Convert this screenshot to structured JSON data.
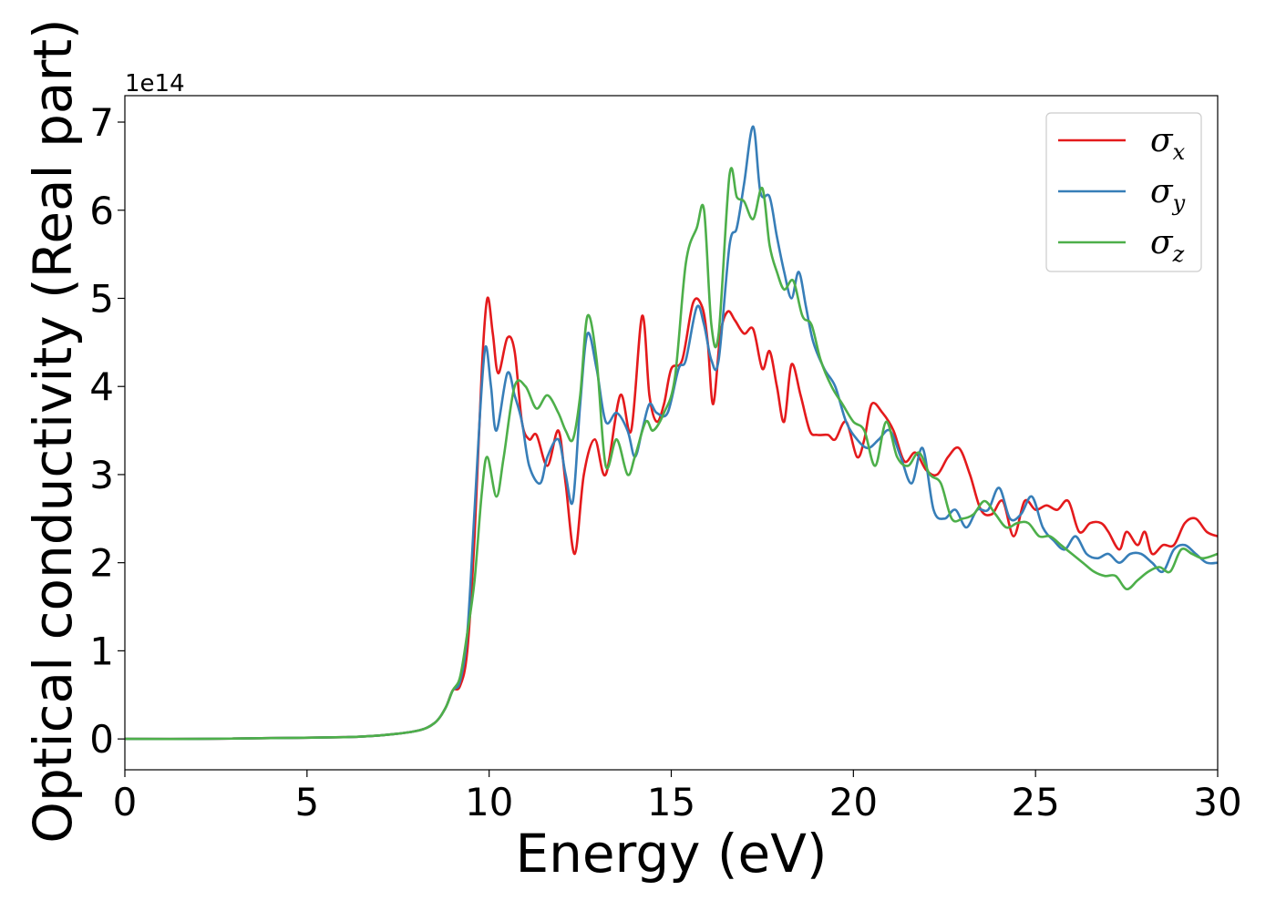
{
  "chart_data": {
    "type": "line",
    "xlabel": "Energy (eV)",
    "ylabel": "Optical conductivity (Real part)",
    "y_offset_label": "1e14",
    "xlim": [
      0,
      30
    ],
    "ylim": [
      -0.35,
      7.3
    ],
    "xticks": [
      0,
      5,
      10,
      15,
      20,
      25,
      30
    ],
    "xtick_labels": [
      "0",
      "5",
      "10",
      "15",
      "20",
      "25",
      "30"
    ],
    "yticks": [
      0,
      1,
      2,
      3,
      4,
      5,
      6,
      7
    ],
    "ytick_labels": [
      "0",
      "1",
      "2",
      "3",
      "4",
      "5",
      "6",
      "7"
    ],
    "grid": false,
    "legend_position": "top-right",
    "series": [
      {
        "name": "σx",
        "symbol": "σ",
        "subscript": "x",
        "color": "#e41a1c",
        "x": [
          0,
          2,
          4,
          6,
          7,
          8,
          8.5,
          8.8,
          9.0,
          9.2,
          9.4,
          9.6,
          9.8,
          9.95,
          10.1,
          10.25,
          10.5,
          10.7,
          10.9,
          11.1,
          11.3,
          11.6,
          11.9,
          12.1,
          12.35,
          12.6,
          12.9,
          13.2,
          13.6,
          13.9,
          14.2,
          14.4,
          14.6,
          14.8,
          15.0,
          15.3,
          15.6,
          15.85,
          16.0,
          16.15,
          16.35,
          16.55,
          16.75,
          17.0,
          17.25,
          17.5,
          17.7,
          17.9,
          18.1,
          18.3,
          18.55,
          18.8,
          19.0,
          19.3,
          19.5,
          19.8,
          20.1,
          20.3,
          20.5,
          20.8,
          21.1,
          21.4,
          21.7,
          22.0,
          22.3,
          22.6,
          22.9,
          23.2,
          23.5,
          23.8,
          24.1,
          24.4,
          24.7,
          25.0,
          25.3,
          25.6,
          25.9,
          26.2,
          26.5,
          26.8,
          27.0,
          27.3,
          27.5,
          27.8,
          28.0,
          28.2,
          28.5,
          28.8,
          29.1,
          29.4,
          29.7,
          30.0
        ],
        "values": [
          0,
          0,
          0.01,
          0.02,
          0.04,
          0.09,
          0.18,
          0.35,
          0.55,
          0.6,
          1.0,
          2.3,
          4.2,
          5.0,
          4.6,
          4.15,
          4.55,
          4.4,
          3.6,
          3.4,
          3.45,
          3.1,
          3.5,
          2.9,
          2.1,
          3.0,
          3.4,
          3.0,
          3.9,
          3.5,
          4.8,
          3.9,
          3.6,
          3.8,
          4.2,
          4.3,
          4.95,
          4.9,
          4.5,
          3.8,
          4.6,
          4.85,
          4.75,
          4.6,
          4.65,
          4.2,
          4.4,
          4.0,
          3.6,
          4.25,
          3.9,
          3.5,
          3.45,
          3.45,
          3.4,
          3.6,
          3.2,
          3.4,
          3.8,
          3.7,
          3.5,
          3.15,
          3.25,
          3.05,
          3.0,
          3.2,
          3.3,
          3.0,
          2.6,
          2.55,
          2.7,
          2.3,
          2.7,
          2.6,
          2.65,
          2.6,
          2.7,
          2.35,
          2.45,
          2.45,
          2.35,
          2.15,
          2.35,
          2.2,
          2.35,
          2.1,
          2.2,
          2.2,
          2.45,
          2.5,
          2.35,
          2.3
        ]
      },
      {
        "name": "σy",
        "symbol": "σ",
        "subscript": "y",
        "color": "#377eb8",
        "x": [
          0,
          2,
          4,
          6,
          7,
          8,
          8.5,
          8.8,
          9.0,
          9.2,
          9.4,
          9.6,
          9.75,
          9.9,
          10.05,
          10.2,
          10.5,
          10.7,
          10.9,
          11.1,
          11.4,
          11.6,
          11.9,
          12.1,
          12.3,
          12.5,
          12.7,
          12.95,
          13.2,
          13.5,
          13.8,
          14.0,
          14.2,
          14.4,
          14.6,
          14.9,
          15.2,
          15.4,
          15.7,
          15.9,
          16.1,
          16.3,
          16.6,
          16.8,
          17.0,
          17.25,
          17.45,
          17.7,
          17.9,
          18.1,
          18.3,
          18.5,
          18.7,
          18.9,
          19.2,
          19.5,
          19.8,
          20.1,
          20.4,
          20.7,
          21.0,
          21.3,
          21.6,
          21.9,
          22.2,
          22.5,
          22.8,
          23.1,
          23.4,
          23.7,
          24.0,
          24.3,
          24.6,
          24.9,
          25.2,
          25.5,
          25.8,
          26.1,
          26.4,
          26.7,
          27.0,
          27.3,
          27.6,
          27.9,
          28.2,
          28.5,
          28.8,
          29.1,
          29.4,
          29.7,
          30.0
        ],
        "values": [
          0,
          0,
          0.01,
          0.02,
          0.04,
          0.09,
          0.18,
          0.35,
          0.55,
          0.65,
          1.2,
          2.6,
          3.7,
          4.45,
          4.0,
          3.5,
          4.15,
          3.9,
          3.6,
          3.1,
          2.9,
          3.2,
          3.4,
          3.0,
          2.7,
          3.8,
          4.6,
          4.2,
          3.6,
          3.7,
          3.5,
          3.2,
          3.5,
          3.8,
          3.7,
          3.7,
          4.2,
          4.3,
          4.9,
          4.7,
          4.3,
          4.3,
          5.6,
          5.8,
          6.3,
          6.95,
          6.2,
          6.15,
          5.7,
          5.3,
          5.0,
          5.3,
          4.9,
          4.5,
          4.2,
          4.0,
          3.6,
          3.4,
          3.3,
          3.4,
          3.5,
          3.2,
          2.9,
          3.3,
          2.6,
          2.5,
          2.6,
          2.4,
          2.6,
          2.6,
          2.85,
          2.5,
          2.55,
          2.75,
          2.4,
          2.25,
          2.15,
          2.3,
          2.1,
          2.05,
          2.1,
          2.0,
          2.1,
          2.1,
          2.0,
          1.9,
          2.15,
          2.2,
          2.1,
          2.0,
          2.0
        ]
      },
      {
        "name": "σz",
        "symbol": "σ",
        "subscript": "z",
        "color": "#4daf4a",
        "x": [
          0,
          2,
          4,
          6,
          7,
          8,
          8.5,
          8.8,
          9.0,
          9.2,
          9.4,
          9.6,
          9.8,
          9.95,
          10.2,
          10.4,
          10.7,
          11.0,
          11.3,
          11.6,
          11.9,
          12.1,
          12.3,
          12.5,
          12.7,
          12.95,
          13.2,
          13.5,
          13.8,
          14.0,
          14.3,
          14.5,
          14.8,
          15.1,
          15.4,
          15.7,
          15.9,
          16.1,
          16.3,
          16.6,
          16.8,
          17.0,
          17.25,
          17.5,
          17.7,
          17.9,
          18.1,
          18.35,
          18.6,
          18.85,
          19.1,
          19.4,
          19.7,
          20.0,
          20.3,
          20.6,
          20.9,
          21.2,
          21.5,
          21.8,
          22.1,
          22.4,
          22.7,
          23.0,
          23.3,
          23.6,
          23.9,
          24.2,
          24.5,
          24.8,
          25.1,
          25.4,
          25.7,
          26.0,
          26.3,
          26.6,
          26.9,
          27.2,
          27.5,
          27.8,
          28.1,
          28.4,
          28.7,
          29.0,
          29.3,
          29.6,
          30.0
        ],
        "values": [
          0,
          0,
          0.01,
          0.02,
          0.04,
          0.09,
          0.18,
          0.35,
          0.55,
          0.7,
          1.2,
          1.8,
          2.8,
          3.2,
          2.75,
          3.2,
          4.0,
          4.0,
          3.75,
          3.9,
          3.7,
          3.5,
          3.4,
          3.9,
          4.8,
          4.3,
          3.1,
          3.4,
          3.0,
          3.2,
          3.6,
          3.5,
          3.7,
          4.1,
          5.4,
          5.8,
          6.0,
          4.7,
          4.6,
          6.4,
          6.15,
          6.1,
          5.9,
          6.25,
          5.6,
          5.3,
          5.1,
          5.2,
          4.8,
          4.7,
          4.3,
          4.0,
          3.8,
          3.6,
          3.5,
          3.1,
          3.6,
          3.2,
          3.1,
          3.25,
          3.0,
          2.9,
          2.5,
          2.5,
          2.55,
          2.7,
          2.55,
          2.4,
          2.45,
          2.45,
          2.3,
          2.3,
          2.2,
          2.1,
          2.0,
          1.9,
          1.85,
          1.85,
          1.7,
          1.8,
          1.9,
          1.95,
          1.9,
          2.15,
          2.1,
          2.05,
          2.1
        ]
      }
    ]
  }
}
